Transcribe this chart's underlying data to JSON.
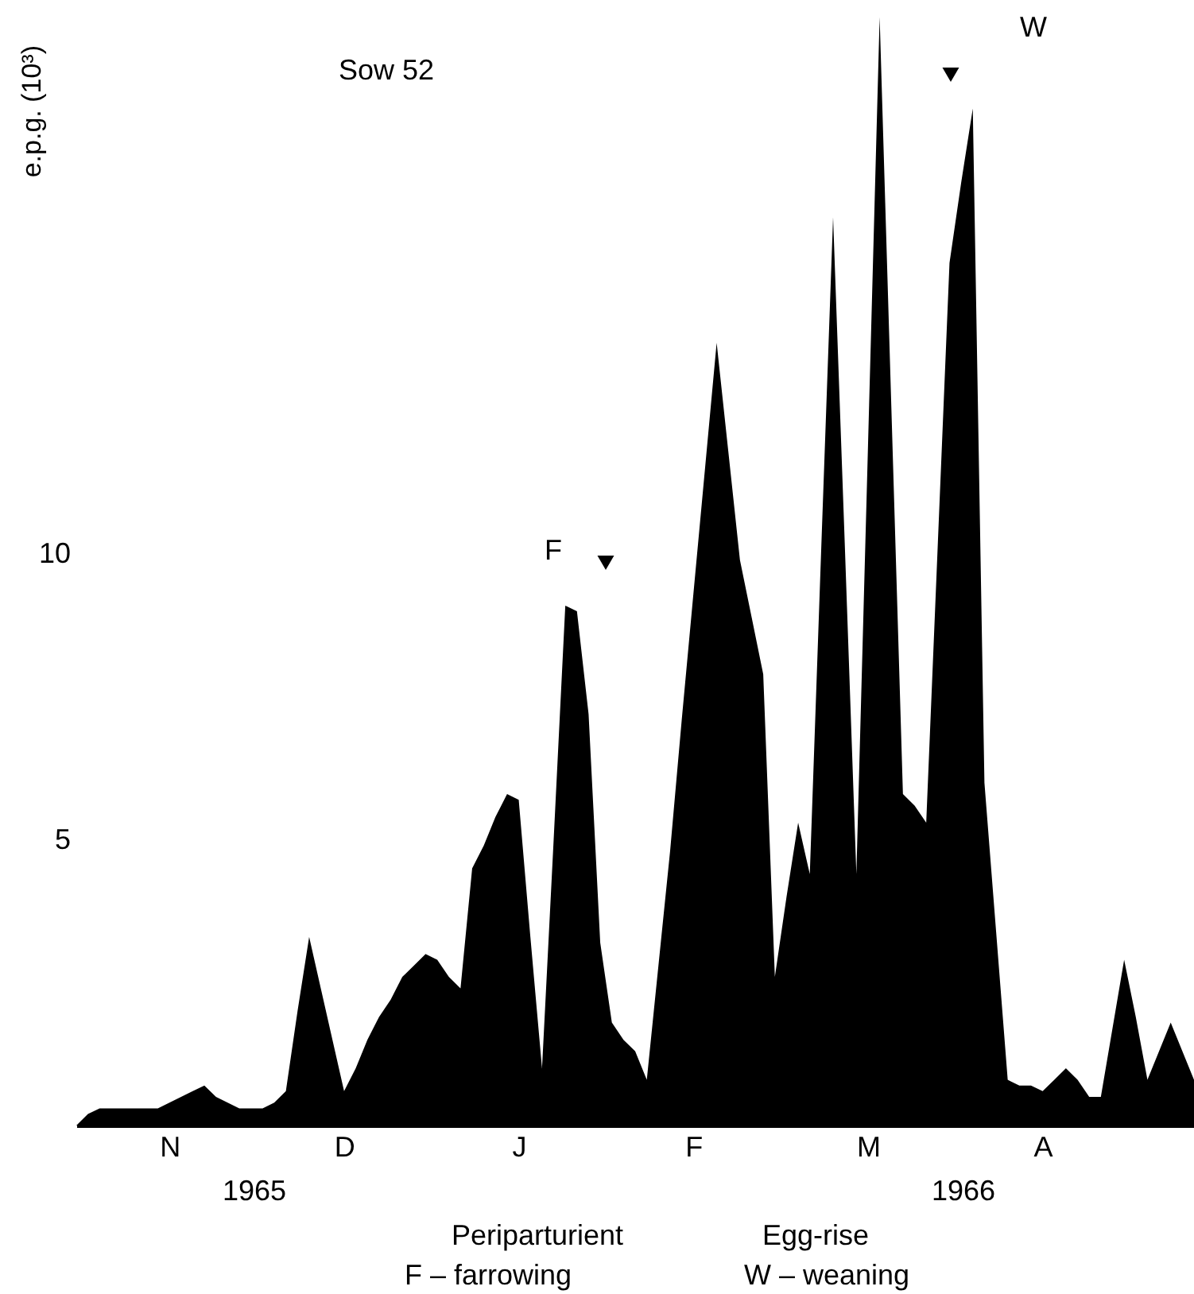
{
  "chart_data": {
    "type": "area",
    "ylabel": "e.p.g. (10³)",
    "color": "#000000",
    "categories": [
      null,
      null,
      null,
      null,
      null,
      null,
      null,
      null,
      "N",
      null,
      null,
      null,
      null,
      null,
      null,
      null,
      null,
      null,
      null,
      null,
      null,
      null,
      null,
      "D",
      null,
      null,
      null,
      null,
      null,
      null,
      null,
      null,
      null,
      null,
      null,
      null,
      null,
      null,
      "J",
      null,
      null,
      null,
      null,
      null,
      null,
      null,
      null,
      null,
      null,
      null,
      null,
      null,
      null,
      "F",
      null,
      null,
      null,
      null,
      null,
      null,
      null,
      null,
      null,
      null,
      null,
      null,
      null,
      null,
      "M",
      null,
      null,
      null,
      null,
      null,
      null,
      null,
      null,
      null,
      null,
      null,
      null,
      null,
      null,
      "A",
      null,
      null,
      null,
      null,
      null,
      null,
      null,
      null,
      null,
      null,
      null,
      null,
      null
    ],
    "values": [
      0,
      0.2,
      0.3,
      0.3,
      0.3,
      0.3,
      0.3,
      0.3,
      0.4,
      0.5,
      0.6,
      0.7,
      0.5,
      0.4,
      0.3,
      0.3,
      0.3,
      0.4,
      0.6,
      2.0,
      3.3,
      2.4,
      1.5,
      0.6,
      1.0,
      1.5,
      1.9,
      2.2,
      2.6,
      2.8,
      3.0,
      2.9,
      2.6,
      2.4,
      4.5,
      4.9,
      5.4,
      5.8,
      5.7,
      3.3,
      1.0,
      5.0,
      9.1,
      9.0,
      7.2,
      3.2,
      1.8,
      1.5,
      1.3,
      0.8,
      2.8,
      4.8,
      7.1,
      9.3,
      11.5,
      13.7,
      11.8,
      9.9,
      8.9,
      7.9,
      2.6,
      4.0,
      5.3,
      4.4,
      10.2,
      15.9,
      10.2,
      4.4,
      11.9,
      19.4,
      12.6,
      5.8,
      5.6,
      5.3,
      10.2,
      15.1,
      16.5,
      17.8,
      6.0,
      3.4,
      0.8,
      0.7,
      0.7,
      0.6,
      0.8,
      1.0,
      0.8,
      0.5,
      0.5,
      1.7,
      2.9,
      1.9,
      0.8,
      1.3,
      1.8,
      1.3,
      0.8
    ],
    "ylim": [
      0,
      19.7
    ],
    "yticks": [
      5,
      10
    ],
    "annotations": [
      "Sow 52",
      "1965",
      "1966",
      "Periparturient",
      "F – farrowing",
      "Egg-rise",
      "W – weaning",
      "F",
      "W"
    ]
  }
}
